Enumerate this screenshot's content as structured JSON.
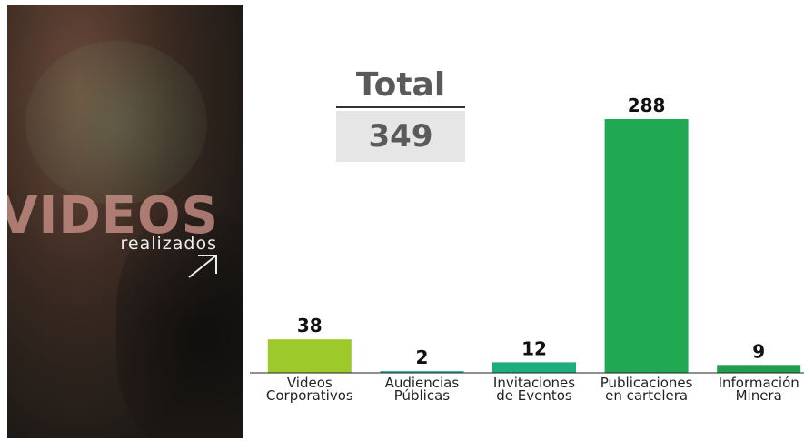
{
  "panel": {
    "title": "VIDEOS",
    "subtitle": "realizados"
  },
  "total": {
    "label": "Total",
    "value": 349
  },
  "chart_data": {
    "type": "bar",
    "categories": [
      "Videos Corporativos",
      "Audiencias Públicas",
      "Invitaciones de Eventos",
      "Publicaciones en cartelera",
      "Información Minera"
    ],
    "values": [
      38,
      2,
      12,
      288,
      9
    ],
    "colors": [
      "#9dc92a",
      "#2db49c",
      "#1dae80",
      "#21a852",
      "#1f9f4b"
    ]
  }
}
